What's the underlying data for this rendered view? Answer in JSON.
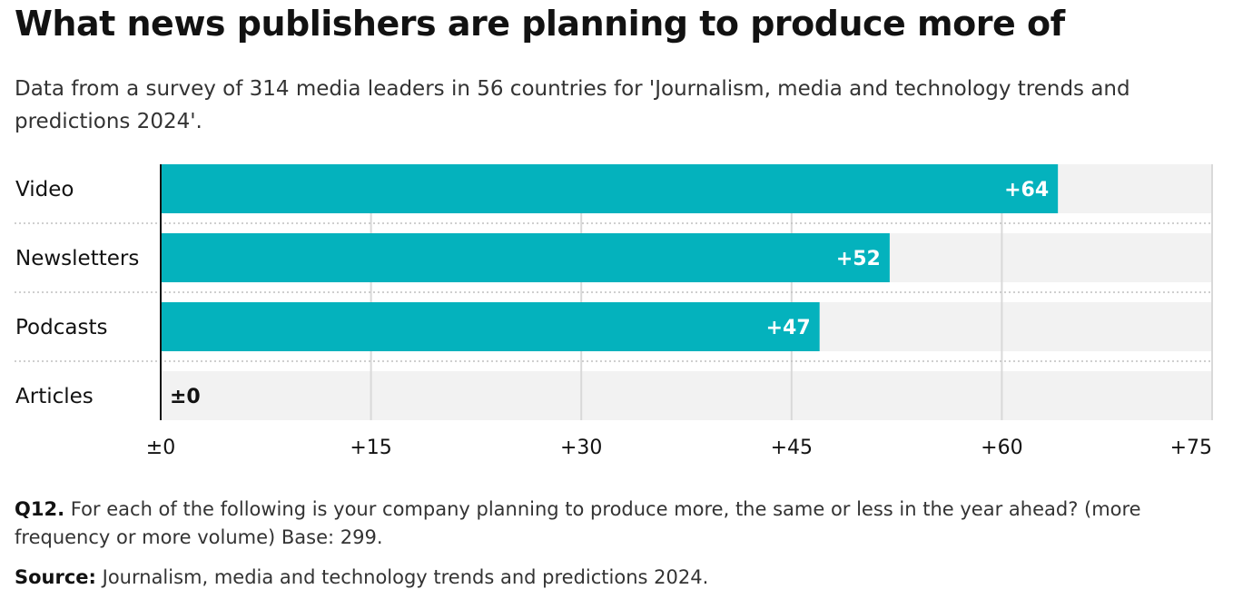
{
  "title": "What news publishers are planning to produce more of",
  "subtitle": "Data from a survey of 314 media leaders in 56 countries for 'Journalism, media and technology trends and predictions 2024'.",
  "footnote": {
    "label": "Q12.",
    "text": "For each of the following is your company planning to produce more, the same or less in the year ahead? (more frequency or more volume) Base: 299."
  },
  "source": {
    "label": "Source:",
    "text": "Journalism, media and technology trends and predictions 2024."
  },
  "colors": {
    "bar": "#04b2bd",
    "track": "#f2f2f2",
    "grid": "#d9d9d9",
    "axis": "#121212"
  },
  "chart_data": {
    "type": "bar",
    "orientation": "horizontal",
    "categories": [
      "Video",
      "Newsletters",
      "Podcasts",
      "Articles"
    ],
    "values": [
      64,
      52,
      47,
      0
    ],
    "data_labels": [
      "+64",
      "+52",
      "+47",
      "±0"
    ],
    "xlim": [
      0,
      75
    ],
    "ticks": [
      0,
      15,
      30,
      45,
      60,
      75
    ],
    "tick_labels": [
      "±0",
      "+15",
      "+30",
      "+45",
      "+60",
      "+75"
    ],
    "xlabel": "",
    "ylabel": "",
    "grid": true
  }
}
